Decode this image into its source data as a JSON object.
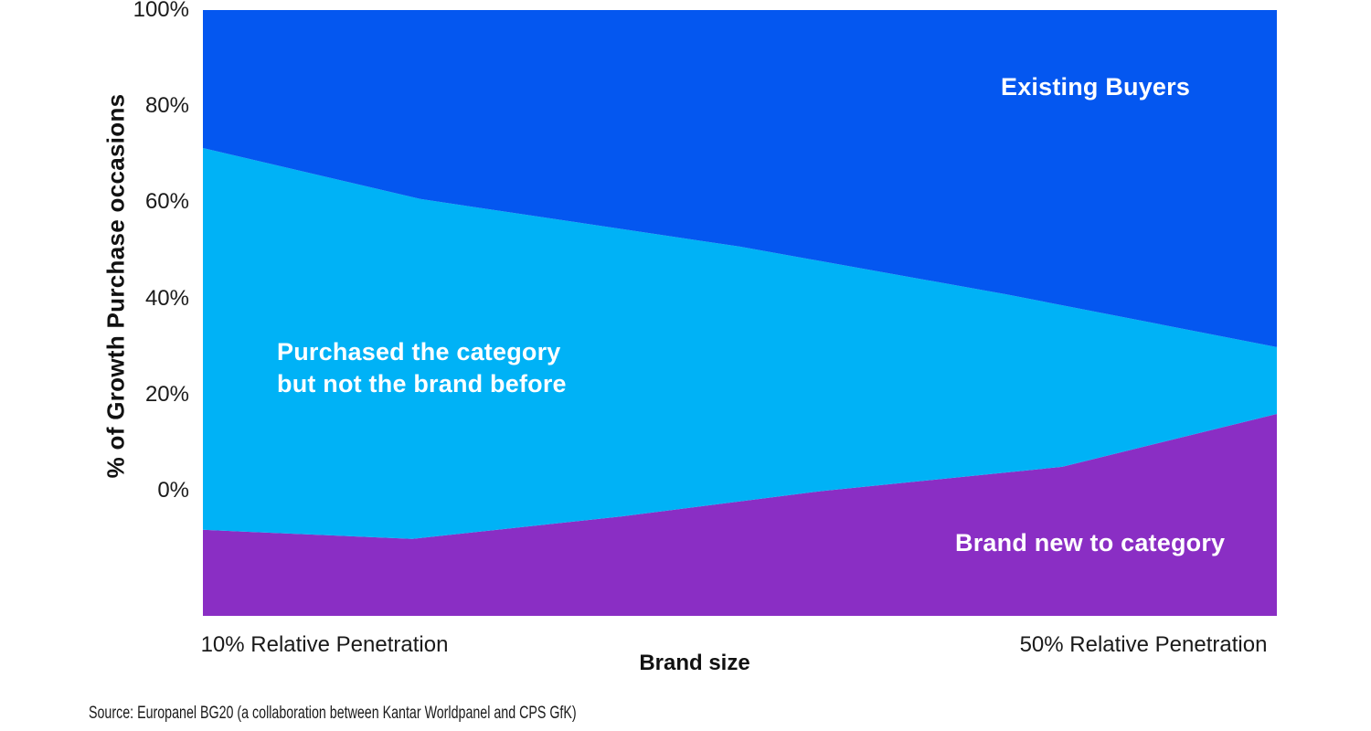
{
  "chart_data": {
    "type": "area",
    "stacked": true,
    "legend_position": "in-plot-labels",
    "grid": false,
    "x_axis": {
      "label": "Brand size",
      "tick_labels": [
        "10% Relative Penetration",
        "50% Relative Penetration"
      ],
      "range": [
        10,
        50
      ]
    },
    "y_axis": {
      "label": "% of Growth Purchase occasions",
      "ticks": [
        "100%",
        "80%",
        "60%",
        "40%",
        "20%",
        "0%"
      ],
      "tick_values": [
        100,
        80,
        60,
        40,
        20,
        0
      ],
      "plot_range": [
        -26,
        100
      ]
    },
    "series": [
      {
        "id": "brand-new-to-category",
        "name": "Brand new to category",
        "label": "Brand new to category",
        "color": "#8A2EC4",
        "top_edge": {
          "x": [
            10,
            17.8,
            25.6,
            33.1,
            42,
            50
          ],
          "pct": [
            -8.1,
            -10,
            -5.3,
            0,
            5,
            16
          ]
        }
      },
      {
        "id": "purchased-category-not-brand",
        "name": "Purchased the category but not the brand before",
        "label": "Purchased the category\nbut not the brand before",
        "color": "#00B2F6",
        "top_edge": {
          "x": [
            10,
            18.1,
            30,
            39.9,
            50
          ],
          "pct": [
            71.3,
            60.7,
            50.8,
            40.9,
            29.9
          ]
        }
      },
      {
        "id": "existing-buyers",
        "name": "Existing Buyers",
        "label": "Existing Buyers",
        "color": "#0457F0",
        "top_edge": {
          "x": [
            10,
            50
          ],
          "pct": [
            100,
            100
          ]
        }
      }
    ],
    "source": "Source: Europanel BG20 (a collaboration between Kantar Worldpanel and CPS GfK)"
  }
}
